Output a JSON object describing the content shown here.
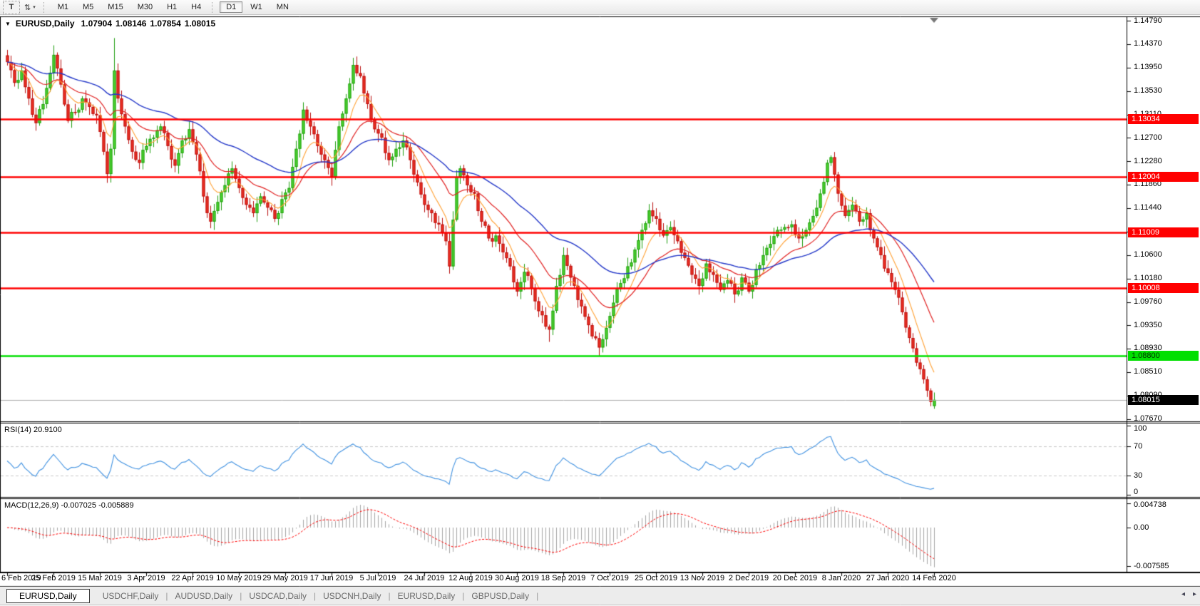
{
  "toolbar": {
    "tools": [
      {
        "name": "text-tool",
        "glyph": "T"
      },
      {
        "name": "pointer-tool",
        "glyph": "⇅",
        "caret": "▾"
      }
    ],
    "timeframes": [
      "M1",
      "M5",
      "M15",
      "M30",
      "H1",
      "H4",
      "D1",
      "W1",
      "MN"
    ],
    "active_timeframe": "D1"
  },
  "title": {
    "collapse_icon": "▼",
    "symbol": "EURUSD,Daily",
    "open": "1.07904",
    "high": "1.08146",
    "low": "1.07854",
    "close": "1.08015"
  },
  "price_axis": {
    "ticks": [
      "1.14790",
      "1.14370",
      "1.13950",
      "1.13530",
      "1.13110",
      "1.12700",
      "1.12280",
      "1.11860",
      "1.11440",
      "1.11020",
      "1.10600",
      "1.10180",
      "1.09760",
      "1.09350",
      "1.08930",
      "1.08510",
      "1.08090",
      "1.07670"
    ]
  },
  "levels": [
    {
      "label": "1.13034",
      "value": 1.13034,
      "line": "#FF0000",
      "bg": "#FF0000",
      "text": "#FFFFFF"
    },
    {
      "label": "1.12004",
      "value": 1.12004,
      "line": "#FF0000",
      "bg": "#FF0000",
      "text": "#FFFFFF"
    },
    {
      "label": "1.11009",
      "value": 1.11009,
      "line": "#FF0000",
      "bg": "#FF0000",
      "text": "#FFFFFF"
    },
    {
      "label": "1.10008",
      "value": 1.10008,
      "line": "#FF0000",
      "bg": "#FF0000",
      "text": "#FFFFFF"
    },
    {
      "label": "1.08800",
      "value": 1.088,
      "line": "#00DF00",
      "bg": "#00DF00",
      "text": "#003300"
    }
  ],
  "current_price": {
    "label": "1.08015",
    "value": 1.08015,
    "line": "#ABABAB",
    "bg": "#000000",
    "text": "#FFFFFF"
  },
  "rsi": {
    "label": "RSI(14) 20.9100",
    "period": 14,
    "current": 20.91,
    "ticks": [
      {
        "label": "100",
        "value": 100
      },
      {
        "label": "70",
        "value": 70
      },
      {
        "label": "30",
        "value": 30
      },
      {
        "label": "0",
        "value": 0
      }
    ],
    "dashed_levels": [
      70,
      30
    ],
    "line_color": "#3E90E0"
  },
  "macd": {
    "label": "MACD(12,26,9) -0.007025 -0.005889",
    "params": "12,26,9",
    "current_macd": -0.007025,
    "current_signal": -0.005889,
    "ticks": [
      {
        "label": "0.004738",
        "value": 0.004738
      },
      {
        "label": "0.00",
        "value": 0
      },
      {
        "label": "-0.007585",
        "value": -0.007585
      }
    ],
    "hist_color": "#A4A4A4",
    "signal_color": "#FF0000"
  },
  "date_axis": {
    "labels": [
      "6 Feb 2019",
      "25 Feb 2019",
      "15 Mar 2019",
      "3 Apr 2019",
      "22 Apr 2019",
      "10 May 2019",
      "29 May 2019",
      "17 Jun 2019",
      "5 Jul 2019",
      "24 Jul 2019",
      "12 Aug 2019",
      "30 Aug 2019",
      "18 Sep 2019",
      "7 Oct 2019",
      "25 Oct 2019",
      "13 Nov 2019",
      "2 Dec 2019",
      "20 Dec 2019",
      "8 Jan 2020",
      "27 Jan 2020",
      "14 Feb 2020"
    ]
  },
  "tabs": {
    "active_index": 0,
    "items": [
      "EURUSD,Daily",
      "USDCHF,Daily",
      "AUDUSD,Daily",
      "USDCAD,Daily",
      "USDCNH,Daily",
      "EURUSD,Daily",
      "GBPUSD,Daily"
    ],
    "scroll_left": "◂",
    "scroll_right": "▸"
  },
  "colors": {
    "bull_fill": "#4FD431",
    "bull_border": "#1E9E0E",
    "bear_fill": "#EE3124",
    "bear_border": "#B90E0E",
    "ma_fast": "#FFA033",
    "ma_mid": "#E02020",
    "ma_slow": "#2337C8",
    "border": "#000000",
    "grid_dash": "#C9C9C9",
    "shift_marker": "#777777"
  },
  "chart_data": {
    "type": "candlestick",
    "symbol": "EURUSD",
    "timeframe": "Daily",
    "bars": 261,
    "x_tick_every": 13,
    "y_axis_visible_range": [
      1.0763,
      1.14854
    ],
    "current_bar": {
      "open": 1.07904,
      "high": 1.08146,
      "low": 1.07854,
      "close": 1.08015
    },
    "horizontal_levels": [
      1.13034,
      1.12004,
      1.11009,
      1.10008,
      1.088
    ],
    "moving_average_periods": {
      "fast": 8,
      "mid": 21,
      "slow": 50
    },
    "noise_seed": 987654321,
    "anchors": [
      [
        0,
        1.1405
      ],
      [
        2,
        1.1368
      ],
      [
        4,
        1.139
      ],
      [
        6,
        1.134
      ],
      [
        8,
        1.1296
      ],
      [
        10,
        1.133
      ],
      [
        13,
        1.1418
      ],
      [
        15,
        1.1365
      ],
      [
        17,
        1.13
      ],
      [
        19,
        1.1315
      ],
      [
        21,
        1.134
      ],
      [
        23,
        1.1325
      ],
      [
        25,
        1.131
      ],
      [
        27,
        1.1245
      ],
      [
        28,
        1.1205
      ],
      [
        29,
        1.125
      ],
      [
        30,
        1.139
      ],
      [
        31,
        1.134
      ],
      [
        33,
        1.129
      ],
      [
        35,
        1.1245
      ],
      [
        37,
        1.1225
      ],
      [
        39,
        1.1255
      ],
      [
        41,
        1.127
      ],
      [
        43,
        1.129
      ],
      [
        45,
        1.1255
      ],
      [
        47,
        1.122
      ],
      [
        49,
        1.1265
      ],
      [
        51,
        1.1285
      ],
      [
        53,
        1.124
      ],
      [
        55,
        1.1165
      ],
      [
        57,
        1.112
      ],
      [
        59,
        1.1155
      ],
      [
        61,
        1.1185
      ],
      [
        63,
        1.1215
      ],
      [
        65,
        1.118
      ],
      [
        67,
        1.115
      ],
      [
        69,
        1.1135
      ],
      [
        71,
        1.1165
      ],
      [
        73,
        1.1145
      ],
      [
        75,
        1.1125
      ],
      [
        77,
        1.116
      ],
      [
        79,
        1.118
      ],
      [
        81,
        1.125
      ],
      [
        83,
        1.132
      ],
      [
        85,
        1.129
      ],
      [
        87,
        1.1255
      ],
      [
        89,
        1.123
      ],
      [
        91,
        1.12
      ],
      [
        93,
        1.129
      ],
      [
        95,
        1.134
      ],
      [
        97,
        1.14
      ],
      [
        99,
        1.138
      ],
      [
        101,
        1.133
      ],
      [
        103,
        1.1285
      ],
      [
        105,
        1.127
      ],
      [
        107,
        1.123
      ],
      [
        109,
        1.125
      ],
      [
        111,
        1.1265
      ],
      [
        113,
        1.123
      ],
      [
        115,
        1.119
      ],
      [
        117,
        1.115
      ],
      [
        119,
        1.1135
      ],
      [
        121,
        1.1115
      ],
      [
        123,
        1.1085
      ],
      [
        124,
        1.104
      ],
      [
        126,
        1.12
      ],
      [
        127,
        1.1215
      ],
      [
        129,
        1.1185
      ],
      [
        131,
        1.117
      ],
      [
        133,
        1.112
      ],
      [
        135,
        1.109
      ],
      [
        137,
        1.1095
      ],
      [
        139,
        1.1065
      ],
      [
        141,
        1.104
      ],
      [
        143,
        1.0995
      ],
      [
        145,
        1.103
      ],
      [
        147,
        1.1
      ],
      [
        149,
        1.096
      ],
      [
        152,
        1.0927
      ],
      [
        154,
        1.1005
      ],
      [
        156,
        1.106
      ],
      [
        158,
        1.102
      ],
      [
        160,
        1.098
      ],
      [
        162,
        1.095
      ],
      [
        164,
        1.0915
      ],
      [
        166,
        1.0895
      ],
      [
        168,
        1.093
      ],
      [
        170,
        1.0975
      ],
      [
        172,
        1.101
      ],
      [
        174,
        1.104
      ],
      [
        176,
        1.107
      ],
      [
        178,
        1.1105
      ],
      [
        180,
        1.114
      ],
      [
        182,
        1.1125
      ],
      [
        184,
        1.1095
      ],
      [
        186,
        1.111
      ],
      [
        188,
        1.1085
      ],
      [
        190,
        1.1055
      ],
      [
        192,
        1.1025
      ],
      [
        194,
        1.1005
      ],
      [
        196,
        1.1045
      ],
      [
        198,
        1.1025
      ],
      [
        200,
        1.0998
      ],
      [
        202,
        1.1015
      ],
      [
        204,
        1.099
      ],
      [
        206,
        1.102
      ],
      [
        208,
        1.0995
      ],
      [
        210,
        1.1035
      ],
      [
        212,
        1.106
      ],
      [
        214,
        1.108
      ],
      [
        216,
        1.1105
      ],
      [
        218,
        1.111
      ],
      [
        220,
        1.1115
      ],
      [
        222,
        1.109
      ],
      [
        224,
        1.1105
      ],
      [
        226,
        1.113
      ],
      [
        228,
        1.117
      ],
      [
        230,
        1.1225
      ],
      [
        231,
        1.1235
      ],
      [
        233,
        1.117
      ],
      [
        235,
        1.113
      ],
      [
        237,
        1.115
      ],
      [
        239,
        1.112
      ],
      [
        241,
        1.1135
      ],
      [
        243,
        1.109
      ],
      [
        245,
        1.106
      ],
      [
        247,
        1.1028
      ],
      [
        249,
        1.0998
      ],
      [
        251,
        1.0958
      ],
      [
        253,
        1.0912
      ],
      [
        255,
        1.0868
      ],
      [
        257,
        1.0838
      ],
      [
        258,
        1.0818
      ],
      [
        259,
        1.0798
      ],
      [
        260,
        1.08015
      ]
    ],
    "wick_events": {
      "13": {
        "high": 1.1435
      },
      "30": {
        "high": 1.1448
      },
      "98": {
        "high": 1.1415
      },
      "124": {
        "low": 1.1027
      },
      "152": {
        "low": 1.0905
      },
      "166": {
        "low": 1.0879
      },
      "259": {
        "low": 1.079
      },
      "260": {
        "high": 1.08146,
        "low": 1.07854
      }
    }
  }
}
